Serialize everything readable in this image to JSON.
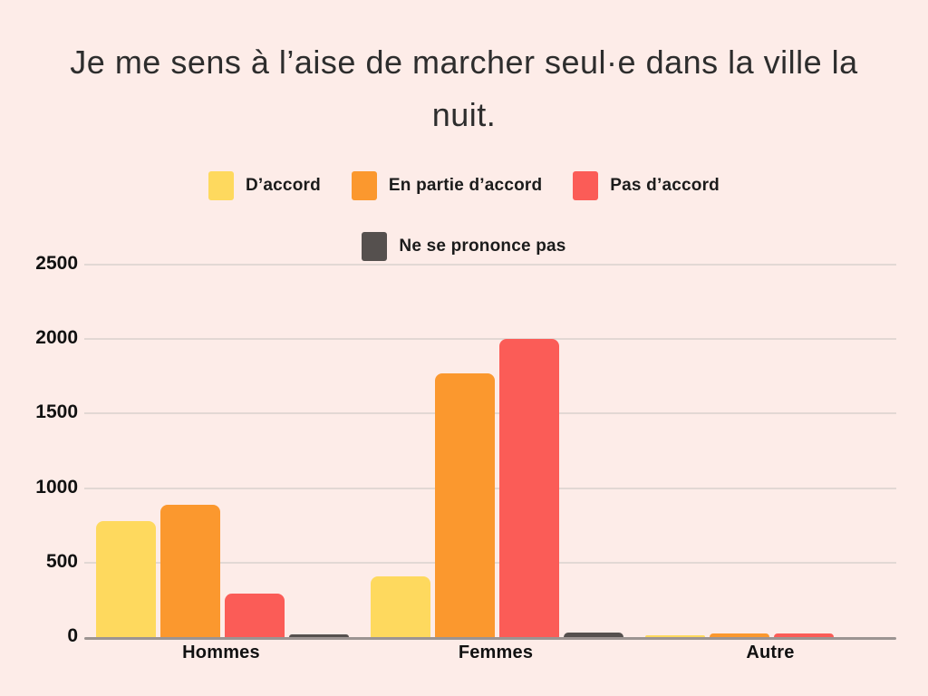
{
  "page": {
    "background": "#FDECE8"
  },
  "chart_data": {
    "type": "bar",
    "title": "Je me sens à l’aise de marcher seul·e dans la ville la nuit.",
    "categories": [
      "Hommes",
      "Femmes",
      "Autre"
    ],
    "series": [
      {
        "name": "D’accord",
        "color": "#FED95E",
        "values": [
          780,
          410,
          10
        ]
      },
      {
        "name": "En partie d’accord",
        "color": "#FB982E",
        "values": [
          890,
          1770,
          25
        ]
      },
      {
        "name": "Pas d’accord",
        "color": "#FB5C57",
        "values": [
          290,
          2000,
          25
        ]
      },
      {
        "name": "Ne se prononce pas",
        "color": "#55504E",
        "values": [
          20,
          30,
          0
        ]
      }
    ],
    "ylim": [
      0,
      2500
    ],
    "yticks": [
      0,
      500,
      1000,
      1500,
      2000,
      2500
    ],
    "grid": true,
    "legend_position": "top",
    "colors": {
      "background": "#FDECE8",
      "gridline": "#E2D8D4",
      "axis": "#9C9492",
      "text": "#111111",
      "title_text": "#2d2d2d"
    }
  }
}
